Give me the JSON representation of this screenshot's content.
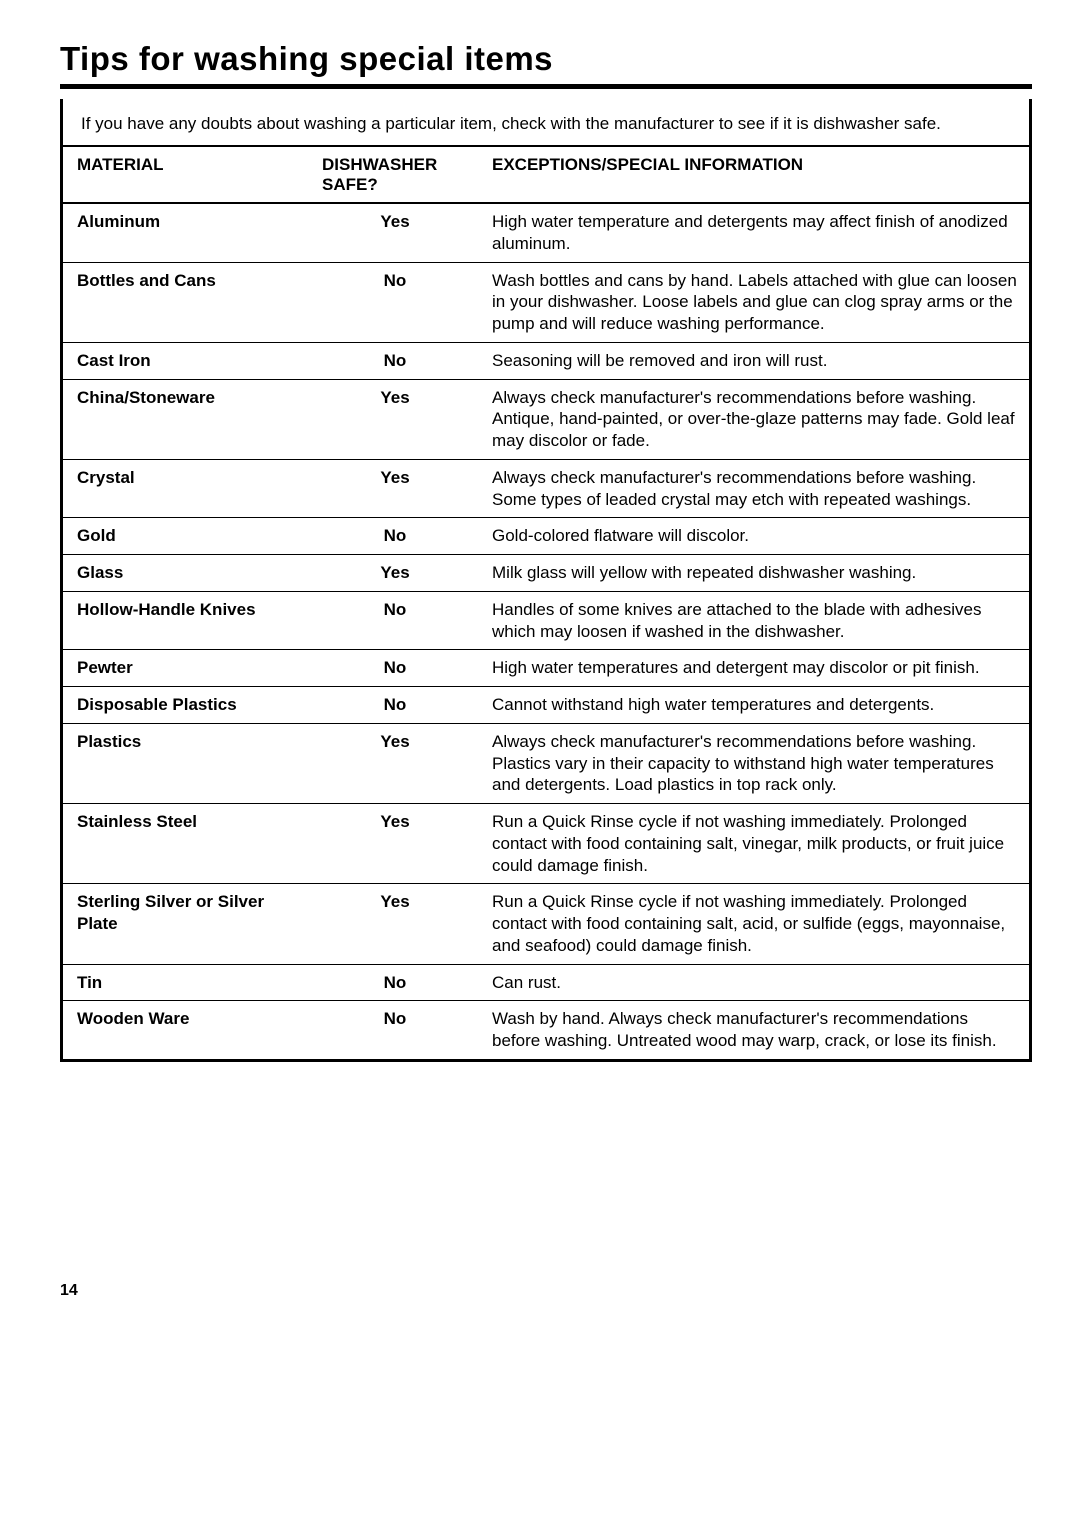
{
  "title": "Tips for washing special items",
  "intro": "If you have any doubts about washing a particular item, check with the manufacturer to see if it is dishwasher safe.",
  "headers": {
    "material": "MATERIAL",
    "safe": "DISHWASHER SAFE?",
    "info": "EXCEPTIONS/SPECIAL INFORMATION"
  },
  "rows": [
    {
      "material": "Aluminum",
      "safe": "Yes",
      "info": "High water temperature and detergents may affect finish of anodized aluminum."
    },
    {
      "material": "Bottles and Cans",
      "safe": "No",
      "info": "Wash bottles and cans by hand. Labels attached with glue can loosen in your dishwasher. Loose labels and glue can clog spray arms or the pump and will reduce washing performance."
    },
    {
      "material": "Cast Iron",
      "safe": "No",
      "info": "Seasoning will be removed and iron will rust."
    },
    {
      "material": "China/Stoneware",
      "safe": "Yes",
      "info": "Always check manufacturer's recommendations before washing. Antique, hand-painted, or over-the-glaze patterns may fade. Gold leaf may discolor or fade."
    },
    {
      "material": "Crystal",
      "safe": "Yes",
      "info": "Always check manufacturer's recommendations before washing. Some types of leaded crystal may etch with repeated washings."
    },
    {
      "material": "Gold",
      "safe": "No",
      "info": "Gold-colored flatware will discolor."
    },
    {
      "material": "Glass",
      "safe": "Yes",
      "info": "Milk glass will yellow with repeated dishwasher washing."
    },
    {
      "material": "Hollow-Handle Knives",
      "safe": "No",
      "info": "Handles of some knives are attached to the blade with adhesives which may loosen if washed in the dishwasher."
    },
    {
      "material": "Pewter",
      "safe": "No",
      "info": "High water temperatures and detergent may discolor or pit finish."
    },
    {
      "material": "Disposable Plastics",
      "safe": "No",
      "info": "Cannot withstand high water temperatures and detergents."
    },
    {
      "material": "Plastics",
      "safe": "Yes",
      "info": "Always check manufacturer's recommendations before washing. Plastics vary in their capacity to withstand high water temperatures and detergents. Load plastics in top rack only."
    },
    {
      "material": "Stainless Steel",
      "safe": "Yes",
      "info": "Run a Quick Rinse cycle if not washing immediately. Prolonged contact with food containing salt, vinegar, milk products, or fruit juice could damage finish."
    },
    {
      "material": "Sterling Silver or Silver Plate",
      "safe": "Yes",
      "info": "Run a Quick Rinse cycle if not washing immediately. Prolonged contact with food containing salt, acid, or sulfide (eggs, mayonnaise, and seafood) could damage finish."
    },
    {
      "material": "Tin",
      "safe": "No",
      "info": "Can rust."
    },
    {
      "material": "Wooden Ware",
      "safe": "No",
      "info": "Wash by hand. Always check manufacturer's recommendations before washing. Untreated wood may warp, crack, or lose its finish."
    }
  ],
  "pageNumber": "14"
}
